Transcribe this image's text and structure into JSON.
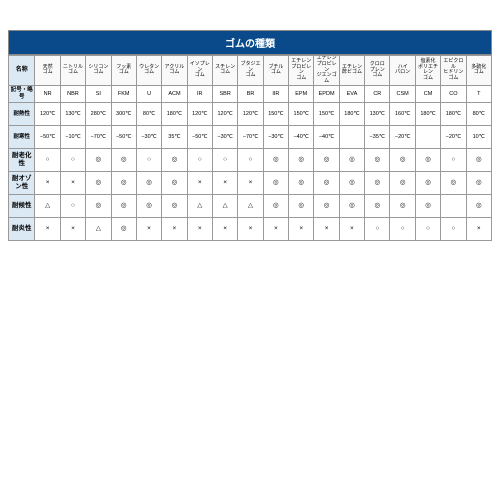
{
  "title": "ゴムの種類",
  "row_headers": [
    "名称",
    "記号・略号",
    "耐熱性",
    "耐寒性",
    "耐老化性",
    "耐オゾン性",
    "耐候性",
    "耐炎性"
  ],
  "columns": [
    {
      "name": "天然\nゴム",
      "code": "NR",
      "heat": "120℃",
      "cold": "−50℃",
      "age": "○",
      "oz": "×",
      "wea": "△",
      "fl": "×"
    },
    {
      "name": "ニトリル\nゴム",
      "code": "NBR",
      "heat": "130℃",
      "cold": "−10℃",
      "age": "○",
      "oz": "×",
      "wea": "○",
      "fl": "×"
    },
    {
      "name": "シリコン\nゴム",
      "code": "SI",
      "heat": "280℃",
      "cold": "−70℃",
      "age": "◎",
      "oz": "◎",
      "wea": "◎",
      "fl": "△"
    },
    {
      "name": "フッ素\nゴム",
      "code": "FKM",
      "heat": "300℃",
      "cold": "−50℃",
      "age": "◎",
      "oz": "◎",
      "wea": "◎",
      "fl": "◎"
    },
    {
      "name": "ウレタン\nゴム",
      "code": "U",
      "heat": "80℃",
      "cold": "−30℃",
      "age": "○",
      "oz": "◎",
      "wea": "◎",
      "fl": "×"
    },
    {
      "name": "アクリル\nゴム",
      "code": "ACM",
      "heat": "180℃",
      "cold": "35℃",
      "age": "◎",
      "oz": "◎",
      "wea": "◎",
      "fl": "×"
    },
    {
      "name": "イソプレン\nゴム",
      "code": "IR",
      "heat": "120℃",
      "cold": "−50℃",
      "age": "○",
      "oz": "×",
      "wea": "△",
      "fl": "×"
    },
    {
      "name": "スチレン\nゴム",
      "code": "SBR",
      "heat": "120℃",
      "cold": "−30℃",
      "age": "○",
      "oz": "×",
      "wea": "△",
      "fl": "×"
    },
    {
      "name": "ブタジエン\nゴム",
      "code": "BR",
      "heat": "120℃",
      "cold": "−70℃",
      "age": "○",
      "oz": "×",
      "wea": "△",
      "fl": "×"
    },
    {
      "name": "ブチル\nゴム",
      "code": "IIR",
      "heat": "150℃",
      "cold": "−30℃",
      "age": "◎",
      "oz": "◎",
      "wea": "◎",
      "fl": "×"
    },
    {
      "name": "エチレン\nプロピレン\nゴム",
      "code": "EPM",
      "heat": "150℃",
      "cold": "−40℃",
      "age": "◎",
      "oz": "◎",
      "wea": "◎",
      "fl": "×"
    },
    {
      "name": "エチレン\nプロピレン\nジエンゴム",
      "code": "EPDM",
      "heat": "150℃",
      "cold": "−40℃",
      "age": "◎",
      "oz": "◎",
      "wea": "◎",
      "fl": "×"
    },
    {
      "name": "エチレン\n酢ビゴム",
      "code": "EVA",
      "heat": "180℃",
      "cold": "",
      "age": "◎",
      "oz": "◎",
      "wea": "◎",
      "fl": "×"
    },
    {
      "name": "クロロ\nプレン\nゴム",
      "code": "CR",
      "heat": "130℃",
      "cold": "−35℃",
      "age": "◎",
      "oz": "◎",
      "wea": "◎",
      "fl": "○"
    },
    {
      "name": "ハイ\nパロン",
      "code": "CSM",
      "heat": "160℃",
      "cold": "−20℃",
      "age": "◎",
      "oz": "◎",
      "wea": "◎",
      "fl": "○"
    },
    {
      "name": "塩素化\nポリエチレン\nゴム",
      "code": "CM",
      "heat": "180℃",
      "cold": "",
      "age": "◎",
      "oz": "◎",
      "wea": "◎",
      "fl": "○"
    },
    {
      "name": "エピクロル\nヒドリン\nゴム",
      "code": "CO",
      "heat": "180℃",
      "cold": "−20℃",
      "age": "○",
      "oz": "◎",
      "wea": "",
      "fl": "○"
    },
    {
      "name": "多硫化\nゴム",
      "code": "T",
      "heat": "80℃",
      "cold": "10℃",
      "age": "◎",
      "oz": "◎",
      "wea": "◎",
      "fl": "×"
    }
  ]
}
